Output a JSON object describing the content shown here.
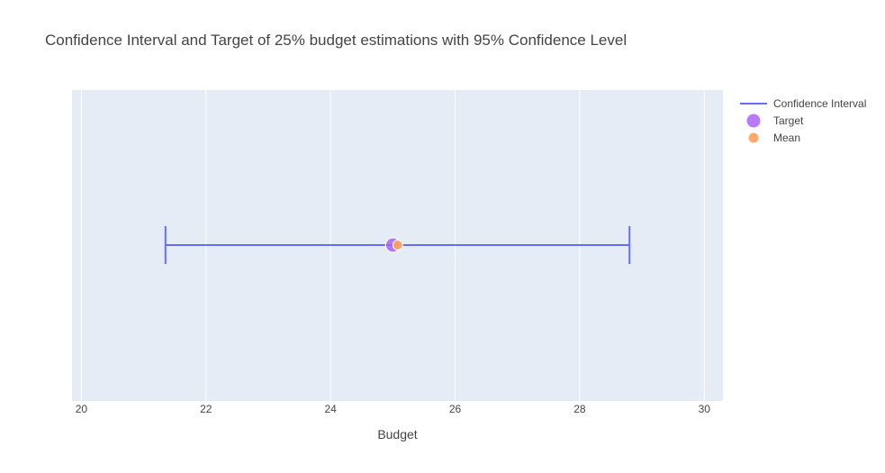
{
  "chart_data": {
    "type": "scatter",
    "title": "Confidence Interval and Target of 25% budget estimations with 95% Confidence Level",
    "xlabel": "Budget",
    "ylabel": "",
    "xlim": [
      19.85,
      30.3
    ],
    "xticks": [
      "20",
      "22",
      "24",
      "26",
      "28",
      "30"
    ],
    "grid": true,
    "legend_position": "top-right",
    "colors": {
      "plot_bg": "#e5ecf6",
      "interval": "#636efa",
      "target": "#ab63fa",
      "mean": "#ffa15a"
    },
    "series": [
      {
        "name": "Confidence Interval",
        "kind": "interval",
        "x": [
          21.35,
          28.8
        ]
      },
      {
        "name": "Target",
        "kind": "point",
        "x": [
          25.0
        ]
      },
      {
        "name": "Mean",
        "kind": "point",
        "x": [
          25.08
        ]
      }
    ]
  }
}
